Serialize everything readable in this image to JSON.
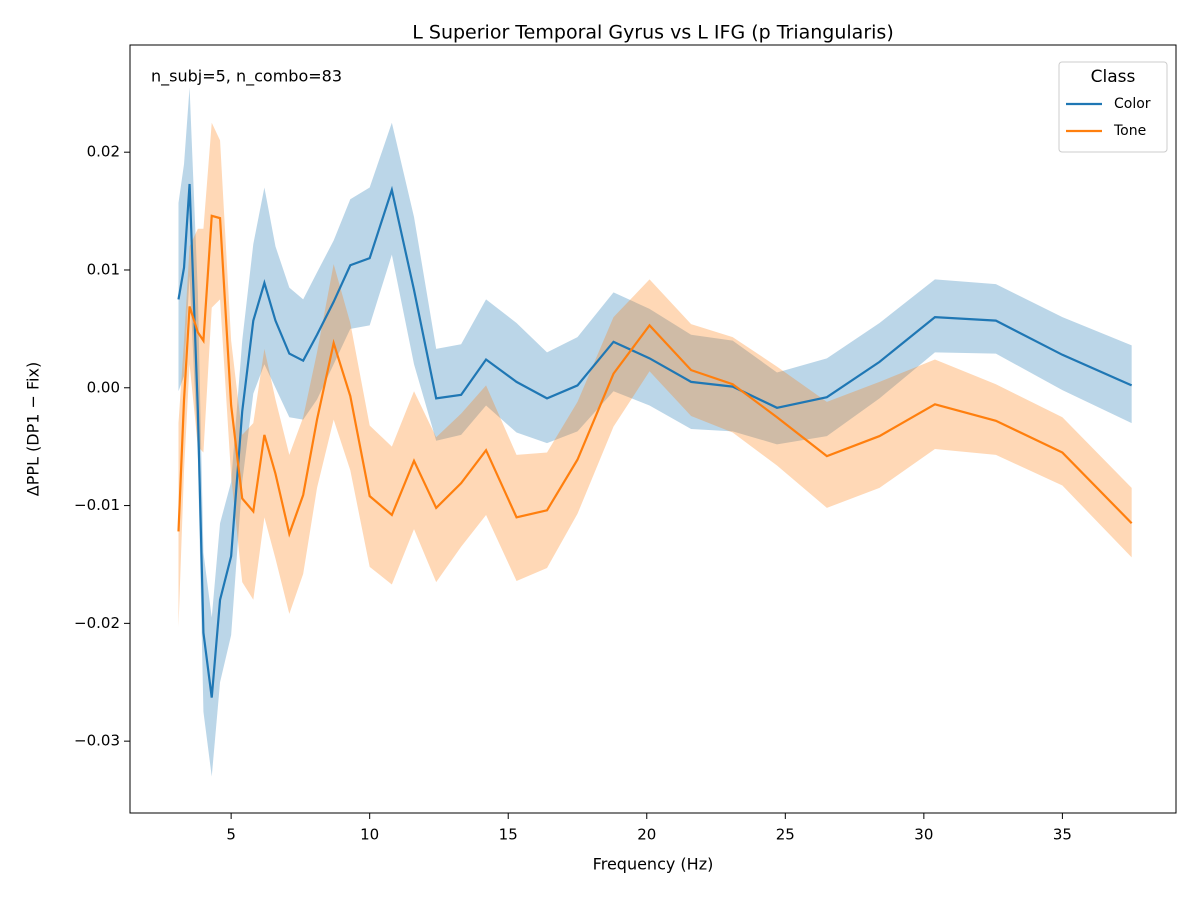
{
  "chart_data": {
    "type": "line",
    "title": "L Superior Temporal Gyrus vs L IFG (p Triangularis)",
    "annotation": "n_subj=5, n_combo=83",
    "x_label": "Frequency (Hz)",
    "y_label": "ΔPPL (DP1 − Fix)",
    "legend_title": "Class",
    "legend_position": "upper right",
    "x": [
      3.1,
      3.3,
      3.5,
      3.8,
      4.0,
      4.3,
      4.6,
      5.0,
      5.4,
      5.8,
      6.2,
      6.6,
      7.1,
      7.6,
      8.1,
      8.7,
      9.3,
      10.0,
      10.8,
      11.6,
      12.4,
      13.3,
      14.2,
      15.3,
      16.4,
      17.5,
      18.8,
      20.1,
      21.6,
      23.1,
      24.7,
      26.5,
      28.4,
      30.4,
      32.6,
      35.0,
      37.5
    ],
    "series": [
      {
        "name": "Color",
        "color": "#1f77b4",
        "values": [
          0.0075,
          0.0102,
          0.0173,
          -0.002,
          -0.0208,
          -0.0263,
          -0.018,
          -0.0143,
          -0.002,
          0.0057,
          0.0089,
          0.0057,
          0.0029,
          0.0023,
          0.0045,
          0.0073,
          0.0104,
          0.011,
          0.0168,
          0.0083,
          -0.0009,
          -0.0006,
          0.0024,
          0.0005,
          -0.0009,
          0.0002,
          0.0039,
          0.0025,
          0.0005,
          0.0001,
          -0.0017,
          -0.0008,
          0.0022,
          0.006,
          0.0057,
          0.0028,
          0.0002
        ],
        "upper": [
          0.0157,
          0.019,
          0.0255,
          0.008,
          -0.014,
          -0.0195,
          -0.0115,
          -0.008,
          0.004,
          0.0122,
          0.017,
          0.012,
          0.0085,
          0.0075,
          0.0098,
          0.0125,
          0.016,
          0.017,
          0.0225,
          0.0145,
          0.0033,
          0.0037,
          0.0075,
          0.0055,
          0.003,
          0.0043,
          0.0081,
          0.0067,
          0.0045,
          0.004,
          0.0013,
          0.0025,
          0.0055,
          0.0092,
          0.0088,
          0.006,
          0.0036
        ],
        "lower": [
          -0.0003,
          0.001,
          0.0095,
          -0.006,
          -0.0275,
          -0.033,
          -0.025,
          -0.021,
          -0.008,
          -0.0005,
          0.002,
          0.0,
          -0.0025,
          -0.0027,
          -0.001,
          0.002,
          0.005,
          0.0053,
          0.0113,
          0.002,
          -0.0045,
          -0.004,
          -0.0015,
          -0.0038,
          -0.0047,
          -0.0037,
          -0.0003,
          -0.0015,
          -0.0035,
          -0.0037,
          -0.0048,
          -0.0041,
          -0.0009,
          0.003,
          0.0029,
          -0.0002,
          -0.003
        ]
      },
      {
        "name": "Tone",
        "color": "#ff7f0e",
        "values": [
          -0.0122,
          -0.001,
          0.0069,
          0.0047,
          0.004,
          0.0146,
          0.0144,
          -0.0015,
          -0.0094,
          -0.0105,
          -0.004,
          -0.0073,
          -0.0124,
          -0.0091,
          -0.0027,
          0.0038,
          -0.0007,
          -0.0092,
          -0.0108,
          -0.0062,
          -0.0102,
          -0.0081,
          -0.0053,
          -0.011,
          -0.0104,
          -0.0061,
          0.0012,
          0.0053,
          0.0015,
          0.0003,
          -0.0025,
          -0.0058,
          -0.0041,
          -0.0014,
          -0.0028,
          -0.0055,
          -0.0115
        ],
        "upper": [
          -0.003,
          0.004,
          0.012,
          0.0135,
          0.0135,
          0.0225,
          0.021,
          0.004,
          -0.004,
          -0.003,
          0.0033,
          -0.001,
          -0.0057,
          -0.0025,
          0.003,
          0.0105,
          0.0055,
          -0.0032,
          -0.005,
          -0.0003,
          -0.0042,
          -0.0022,
          0.0002,
          -0.0057,
          -0.0055,
          -0.0012,
          0.006,
          0.0092,
          0.0054,
          0.0043,
          0.0018,
          -0.0012,
          0.0005,
          0.0024,
          0.0003,
          -0.0025,
          -0.0085
        ],
        "lower": [
          -0.0203,
          -0.007,
          0.002,
          -0.005,
          -0.0055,
          0.0068,
          0.0075,
          -0.0075,
          -0.0165,
          -0.018,
          -0.011,
          -0.0145,
          -0.0192,
          -0.0158,
          -0.0085,
          -0.0027,
          -0.007,
          -0.0152,
          -0.0167,
          -0.012,
          -0.0165,
          -0.0135,
          -0.0108,
          -0.0164,
          -0.0153,
          -0.0107,
          -0.0033,
          0.0014,
          -0.0024,
          -0.0038,
          -0.0066,
          -0.0102,
          -0.0085,
          -0.0052,
          -0.0057,
          -0.0083,
          -0.0144
        ]
      }
    ],
    "xlim": [
      1.35,
      39.1
    ],
    "ylim": [
      -0.0361,
      0.0291
    ],
    "xticks": [
      5,
      10,
      15,
      20,
      25,
      30,
      35
    ],
    "yticks": [
      {
        "value": -0.03,
        "label": "−0.03"
      },
      {
        "value": -0.02,
        "label": "−0.02"
      },
      {
        "value": -0.01,
        "label": "−0.01"
      },
      {
        "value": 0,
        "label": "0.00"
      },
      0.01,
      0.02
    ],
    "band_opacity": 0.3
  }
}
